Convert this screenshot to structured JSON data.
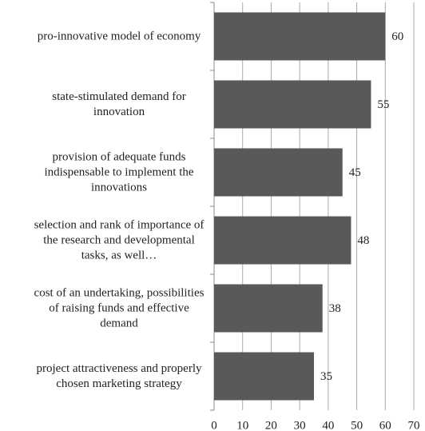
{
  "chart_data": {
    "type": "barh",
    "categories": [
      "pro-innovative model of economy",
      "state-stimulated demand for innovation",
      "provision of adequate funds indispensable to implement the innovations",
      "selection and rank of importance of the research and developmental tasks, as well…",
      "cost of an undertaking, possibilities of raising funds and effective demand",
      "project attractiveness and properly chosen marketing strategy"
    ],
    "values": [
      60,
      55,
      45,
      48,
      38,
      35
    ],
    "color": "#595959",
    "xlim": [
      0,
      70
    ],
    "xticks": [
      0,
      10,
      20,
      30,
      40,
      50,
      60,
      70
    ],
    "grid": true
  }
}
